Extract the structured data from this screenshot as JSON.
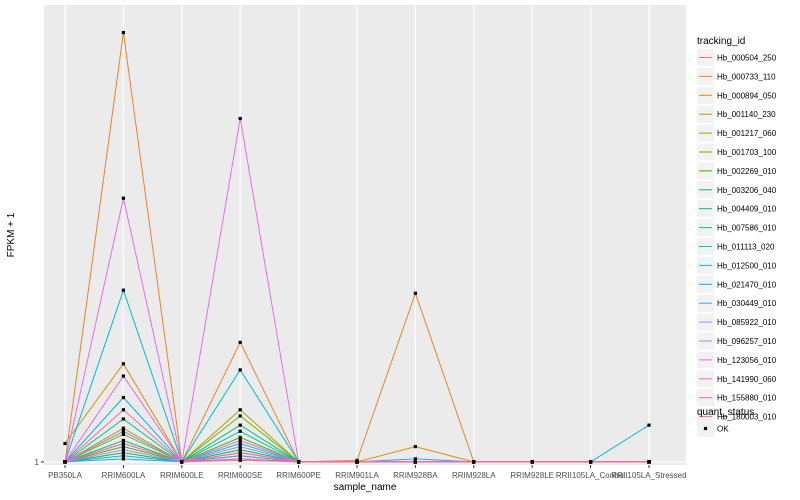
{
  "chart_data": {
    "type": "line",
    "title": "",
    "xlabel": "sample_name",
    "ylabel": "FPKM + 1",
    "yticks": [
      {
        "value": 1,
        "label": "1"
      }
    ],
    "ylim": [
      0.9,
      15.9
    ],
    "grid": true,
    "legend_position": "right",
    "categories": [
      "PB350LA",
      "RRIM600LA",
      "RRIM600LE",
      "RRIM600SE",
      "RRIM600PE",
      "RRIM901LA",
      "RRIM928BA",
      "RRIM928LA",
      "RRIM928LE",
      "RRII105LA_Control",
      "RRII105LA_Stressed"
    ],
    "series": [
      {
        "name": "Hb_000504_250",
        "color": "#F8766D",
        "values": [
          1,
          2,
          1,
          1.05,
          1,
          1,
          1,
          1,
          1,
          1,
          1
        ]
      },
      {
        "name": "Hb_000733_110",
        "color": "#EA8331",
        "values": [
          1,
          15,
          1,
          4.9,
          1,
          1.05,
          6.5,
          1,
          1,
          1,
          1
        ]
      },
      {
        "name": "Hb_000894_050",
        "color": "#D89000",
        "values": [
          1.6,
          4.2,
          1,
          1.3,
          1,
          1,
          1.5,
          1,
          1,
          1,
          1
        ]
      },
      {
        "name": "Hb_001140_230",
        "color": "#C09B00",
        "values": [
          1,
          1.6,
          1,
          1.2,
          1,
          1,
          1,
          1,
          1,
          1,
          1
        ]
      },
      {
        "name": "Hb_001217_060",
        "color": "#A3A500",
        "values": [
          1,
          2.1,
          1,
          2.7,
          1,
          1,
          1,
          1,
          1,
          1,
          1
        ]
      },
      {
        "name": "Hb_001703_100",
        "color": "#7CAE00",
        "values": [
          1,
          1.9,
          1,
          2.5,
          1,
          1,
          1,
          1,
          1,
          1,
          1
        ]
      },
      {
        "name": "Hb_002269_010",
        "color": "#39B600",
        "values": [
          1,
          1.5,
          1,
          1.8,
          1,
          1,
          1,
          1,
          1,
          1,
          1
        ]
      },
      {
        "name": "Hb_003206_040",
        "color": "#00BB4E",
        "values": [
          1,
          1.3,
          1,
          1.4,
          1,
          1,
          1,
          1,
          1,
          1,
          1
        ]
      },
      {
        "name": "Hb_004409_010",
        "color": "#00BF7D",
        "values": [
          1,
          1.7,
          1,
          2.2,
          1,
          1,
          1,
          1,
          1,
          1,
          1
        ]
      },
      {
        "name": "Hb_007586_010",
        "color": "#00C1A3",
        "values": [
          1,
          2.4,
          1,
          2.0,
          1,
          1,
          1,
          1,
          1,
          1,
          1
        ]
      },
      {
        "name": "Hb_011113_020",
        "color": "#00BFC4",
        "values": [
          1,
          1.2,
          1,
          1.6,
          1,
          1,
          1,
          1,
          1,
          1,
          1
        ]
      },
      {
        "name": "Hb_012500_010",
        "color": "#00BAE0",
        "values": [
          1,
          6.6,
          1,
          4.0,
          1,
          1,
          1,
          1,
          1,
          1,
          2.2
        ]
      },
      {
        "name": "Hb_021470_010",
        "color": "#00B0F6",
        "values": [
          1,
          3.1,
          1,
          1.1,
          1,
          1,
          1,
          1,
          1,
          1,
          1
        ]
      },
      {
        "name": "Hb_030449_010",
        "color": "#35A2FF",
        "values": [
          1,
          1.1,
          1,
          1.2,
          1,
          1,
          1.1,
          1,
          1,
          1,
          1
        ]
      },
      {
        "name": "Hb_085922_010",
        "color": "#9590FF",
        "values": [
          1,
          2.0,
          1,
          1.5,
          1,
          1,
          1,
          1,
          1,
          1,
          1
        ]
      },
      {
        "name": "Hb_096257_010",
        "color": "#C77CFF",
        "values": [
          1,
          1.4,
          1,
          1.3,
          1,
          1,
          1,
          1,
          1,
          1,
          1
        ]
      },
      {
        "name": "Hb_123056_010",
        "color": "#E76BF3",
        "values": [
          1,
          9.6,
          1,
          12.2,
          1,
          1,
          1,
          1,
          1,
          1,
          1
        ]
      },
      {
        "name": "Hb_141990_060",
        "color": "#FA62DB",
        "values": [
          1,
          3.8,
          1,
          1.7,
          1,
          1,
          1,
          1,
          1,
          1,
          1
        ]
      },
      {
        "name": "Hb_155880_010",
        "color": "#FF62BC",
        "values": [
          1,
          1.6,
          1,
          1.1,
          1,
          1,
          1,
          1,
          1,
          1,
          1
        ]
      },
      {
        "name": "Hb_180003_010",
        "color": "#FF6C91",
        "values": [
          1,
          2.7,
          1,
          1.3,
          1,
          1,
          1,
          1,
          1,
          1,
          1
        ]
      }
    ],
    "legends": {
      "color_title": "tracking_id",
      "shape_title": "quant_status",
      "shape_entries": [
        "OK"
      ]
    }
  }
}
